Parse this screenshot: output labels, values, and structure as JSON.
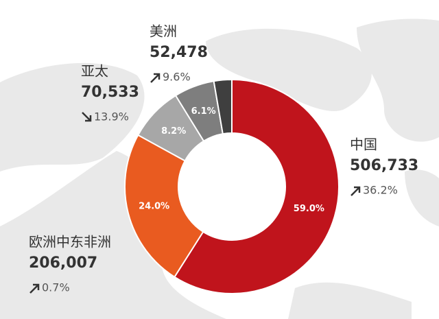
{
  "chart_data": {
    "type": "donut",
    "categories": [
      "中国",
      "欧洲中东非洲",
      "亚太",
      "美洲",
      null
    ],
    "values": [
      59.0,
      24.0,
      8.2,
      6.1,
      2.7
    ],
    "value_labels": [
      "59.0%",
      "24.0%",
      "8.2%",
      "6.1%",
      null
    ],
    "colors": [
      "#c0141c",
      "#e95b20",
      "#a7a7a7",
      "#7e7e7e",
      "#3f3f3f"
    ],
    "amounts": [
      506733,
      206007,
      70533,
      52478,
      null
    ],
    "amount_labels": [
      "506,733",
      "206,007",
      "70,533",
      "52,478",
      null
    ],
    "changes": [
      36.2,
      0.7,
      13.9,
      9.6,
      null
    ],
    "change_labels": [
      "36.2%",
      "0.7%",
      "13.9%",
      "9.6%",
      null
    ],
    "change_directions": [
      "up",
      "up",
      "down",
      "up",
      null
    ]
  }
}
